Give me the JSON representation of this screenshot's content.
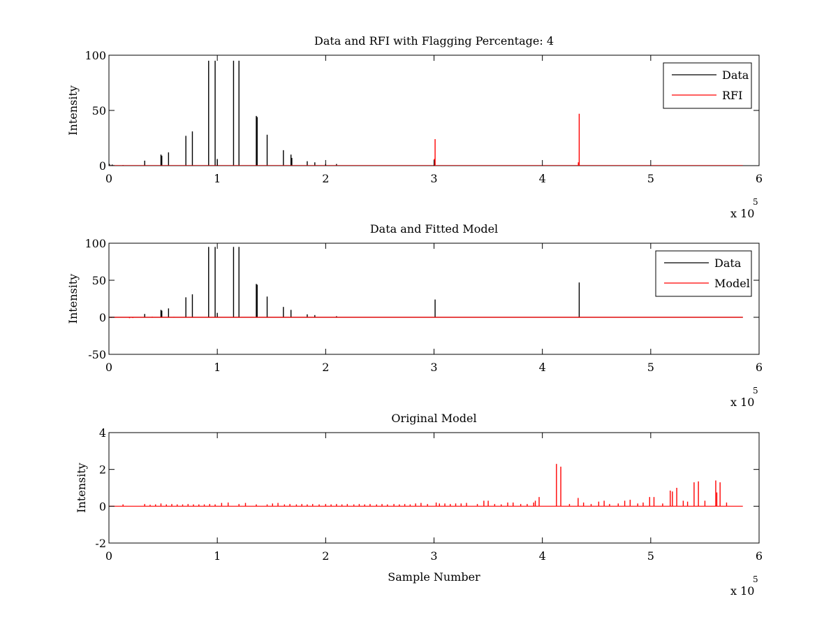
{
  "chart_data": [
    {
      "type": "line",
      "title": "Data and RFI with Flagging Percentage: 4",
      "xlabel": "",
      "ylabel": "Intensity",
      "xlim": [
        0,
        600000
      ],
      "ylim": [
        0,
        100
      ],
      "x_ticks": [
        0,
        100000,
        200000,
        300000,
        400000,
        500000,
        600000
      ],
      "x_tick_labels": [
        "0",
        "1",
        "2",
        "3",
        "4",
        "5",
        "6"
      ],
      "y_ticks": [
        0,
        50,
        100
      ],
      "y_tick_labels": [
        "0",
        "50",
        "100"
      ],
      "x_exponent_label": "x 10",
      "x_exponent": "5",
      "legend_position": "top-right",
      "series": [
        {
          "name": "Data",
          "color": "#000000",
          "baseline": 0,
          "spikes": [
            [
              500,
              1.5
            ],
            [
              3000,
              1.0
            ],
            [
              13000,
              0.5
            ],
            [
              33000,
              4.5
            ],
            [
              48000,
              10
            ],
            [
              48800,
              9
            ],
            [
              55000,
              12
            ],
            [
              71000,
              27
            ],
            [
              77000,
              31
            ],
            [
              92000,
              95
            ],
            [
              98000,
              95
            ],
            [
              100000,
              6
            ],
            [
              115000,
              95
            ],
            [
              120000,
              95
            ],
            [
              136000,
              45
            ],
            [
              136800,
              44
            ],
            [
              146000,
              28
            ],
            [
              161000,
              14
            ],
            [
              168000,
              10
            ],
            [
              168800,
              7
            ],
            [
              183000,
              4
            ],
            [
              190000,
              3
            ],
            [
              200000,
              1.5
            ],
            [
              210000,
              1.5
            ]
          ]
        },
        {
          "name": "RFI",
          "color": "#ff0000",
          "baseline": 0,
          "spikes": [
            [
              301000,
              24
            ],
            [
              300200,
              6
            ],
            [
              434000,
              47
            ],
            [
              433200,
              3
            ]
          ]
        }
      ]
    },
    {
      "type": "line",
      "title": "Data and Fitted Model",
      "xlabel": "",
      "ylabel": "Intensity",
      "xlim": [
        0,
        600000
      ],
      "ylim": [
        -50,
        100
      ],
      "x_ticks": [
        0,
        100000,
        200000,
        300000,
        400000,
        500000,
        600000
      ],
      "x_tick_labels": [
        "0",
        "1",
        "2",
        "3",
        "4",
        "5",
        "6"
      ],
      "y_ticks": [
        -50,
        0,
        50,
        100
      ],
      "y_tick_labels": [
        "-50",
        "0",
        "50",
        "100"
      ],
      "x_exponent_label": "x 10",
      "x_exponent": "5",
      "legend_position": "top-right",
      "series": [
        {
          "name": "Data",
          "color": "#000000",
          "baseline": 0,
          "spikes": [
            [
              33000,
              4.5
            ],
            [
              48000,
              10
            ],
            [
              48800,
              9
            ],
            [
              55000,
              12
            ],
            [
              71000,
              27
            ],
            [
              77000,
              31
            ],
            [
              92000,
              95
            ],
            [
              98000,
              95
            ],
            [
              100000,
              6
            ],
            [
              115000,
              95
            ],
            [
              120000,
              95
            ],
            [
              136000,
              45
            ],
            [
              136800,
              44
            ],
            [
              146000,
              28
            ],
            [
              161000,
              14
            ],
            [
              168000,
              10
            ],
            [
              183000,
              4
            ],
            [
              190000,
              3
            ],
            [
              210000,
              1.5
            ],
            [
              301000,
              24
            ],
            [
              434000,
              47
            ]
          ]
        },
        {
          "name": "Model",
          "color": "#ff0000",
          "baseline": 0,
          "spikes": [
            [
              2000,
              -0.8
            ],
            [
              6000,
              -0.6
            ],
            [
              19000,
              -1.2
            ],
            [
              22000,
              -1.0
            ],
            [
              40000,
              0.8
            ],
            [
              60000,
              0.6
            ]
          ]
        }
      ]
    },
    {
      "type": "line",
      "title": "Original Model",
      "xlabel": "Sample Number",
      "ylabel": "Intensity",
      "xlim": [
        0,
        600000
      ],
      "ylim": [
        -2,
        4
      ],
      "x_ticks": [
        0,
        100000,
        200000,
        300000,
        400000,
        500000,
        600000
      ],
      "x_tick_labels": [
        "0",
        "1",
        "2",
        "3",
        "4",
        "5",
        "6"
      ],
      "y_ticks": [
        -2,
        0,
        2,
        4
      ],
      "y_tick_labels": [
        "-2",
        "0",
        "2",
        "4"
      ],
      "x_exponent_label": "x 10",
      "x_exponent": "5",
      "series": [
        {
          "name": "",
          "color": "#ff0000",
          "baseline": 0,
          "spikes": [
            [
              13000,
              0.1
            ],
            [
              33000,
              0.12
            ],
            [
              38000,
              0.08
            ],
            [
              43000,
              0.1
            ],
            [
              48000,
              0.15
            ],
            [
              53000,
              0.1
            ],
            [
              58000,
              0.12
            ],
            [
              63000,
              0.1
            ],
            [
              68000,
              0.1
            ],
            [
              73000,
              0.12
            ],
            [
              78000,
              0.1
            ],
            [
              83000,
              0.1
            ],
            [
              88000,
              0.1
            ],
            [
              93000,
              0.12
            ],
            [
              98000,
              0.1
            ],
            [
              104000,
              0.18
            ],
            [
              110000,
              0.2
            ],
            [
              120000,
              0.12
            ],
            [
              126000,
              0.18
            ],
            [
              136000,
              0.1
            ],
            [
              146000,
              0.1
            ],
            [
              151000,
              0.15
            ],
            [
              156000,
              0.18
            ],
            [
              162000,
              0.1
            ],
            [
              167000,
              0.12
            ],
            [
              173000,
              0.1
            ],
            [
              178000,
              0.12
            ],
            [
              183000,
              0.1
            ],
            [
              188000,
              0.12
            ],
            [
              194000,
              0.1
            ],
            [
              200000,
              0.12
            ],
            [
              205000,
              0.1
            ],
            [
              210000,
              0.12
            ],
            [
              215000,
              0.1
            ],
            [
              220000,
              0.12
            ],
            [
              226000,
              0.1
            ],
            [
              231000,
              0.12
            ],
            [
              236000,
              0.1
            ],
            [
              241000,
              0.12
            ],
            [
              247000,
              0.1
            ],
            [
              252000,
              0.12
            ],
            [
              257000,
              0.1
            ],
            [
              263000,
              0.12
            ],
            [
              268000,
              0.1
            ],
            [
              273000,
              0.12
            ],
            [
              278000,
              0.1
            ],
            [
              283000,
              0.15
            ],
            [
              288000,
              0.18
            ],
            [
              294000,
              0.12
            ],
            [
              302000,
              0.2
            ],
            [
              305000,
              0.15
            ],
            [
              310000,
              0.15
            ],
            [
              315000,
              0.12
            ],
            [
              320000,
              0.15
            ],
            [
              325000,
              0.15
            ],
            [
              330000,
              0.18
            ],
            [
              340000,
              0.12
            ],
            [
              346000,
              0.3
            ],
            [
              350000,
              0.3
            ],
            [
              356000,
              0.12
            ],
            [
              362000,
              0.1
            ],
            [
              368000,
              0.2
            ],
            [
              373000,
              0.2
            ],
            [
              380000,
              0.12
            ],
            [
              386000,
              0.12
            ],
            [
              392000,
              0.2
            ],
            [
              393500,
              0.3
            ],
            [
              397000,
              0.5
            ],
            [
              413000,
              2.3
            ],
            [
              417000,
              2.15
            ],
            [
              425000,
              0.12
            ],
            [
              433000,
              0.45
            ],
            [
              438000,
              0.2
            ],
            [
              445000,
              0.12
            ],
            [
              452000,
              0.25
            ],
            [
              457000,
              0.3
            ],
            [
              462000,
              0.12
            ],
            [
              470000,
              0.15
            ],
            [
              476000,
              0.3
            ],
            [
              481000,
              0.35
            ],
            [
              488000,
              0.15
            ],
            [
              493000,
              0.2
            ],
            [
              499000,
              0.5
            ],
            [
              503000,
              0.5
            ],
            [
              511000,
              0.15
            ],
            [
              518000,
              0.85
            ],
            [
              520000,
              0.8
            ],
            [
              524000,
              1.0
            ],
            [
              530000,
              0.3
            ],
            [
              534000,
              0.25
            ],
            [
              540000,
              1.3
            ],
            [
              544000,
              1.35
            ],
            [
              550000,
              0.3
            ],
            [
              560000,
              1.4
            ],
            [
              561000,
              0.75
            ],
            [
              564000,
              1.3
            ],
            [
              570000,
              0.2
            ]
          ]
        }
      ]
    }
  ]
}
